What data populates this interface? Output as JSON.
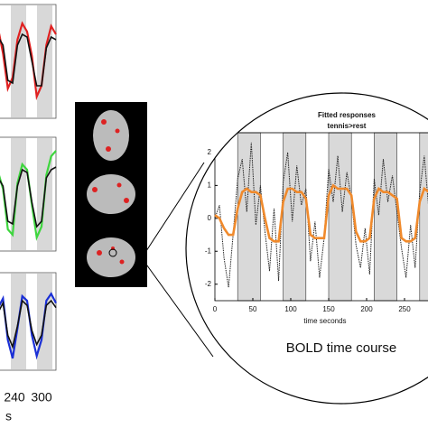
{
  "chart_data": [
    {
      "type": "line",
      "title": "Fitted responses",
      "subtitle": "tennis>rest",
      "xlabel": "time seconds",
      "caption": "BOLD time course",
      "xlim": [
        0,
        290
      ],
      "ylim": [
        -2.5,
        2.6
      ],
      "xticks": [
        0,
        50,
        100,
        150,
        200,
        250
      ],
      "yticks": [
        -2,
        -1,
        0,
        1,
        2
      ],
      "blocks": [
        [
          30,
          60
        ],
        [
          90,
          120
        ],
        [
          150,
          180
        ],
        [
          210,
          240
        ],
        [
          270,
          300
        ]
      ],
      "x": [
        0,
        6,
        12,
        18,
        24,
        30,
        36,
        42,
        48,
        54,
        60,
        66,
        72,
        78,
        84,
        90,
        96,
        102,
        108,
        114,
        120,
        126,
        132,
        138,
        144,
        150,
        156,
        162,
        168,
        174,
        180,
        186,
        192,
        198,
        204,
        210,
        216,
        222,
        228,
        234,
        240,
        246,
        252,
        258,
        264,
        270,
        276,
        282,
        288
      ],
      "series": [
        {
          "color": "#222222",
          "values": [
            0.0,
            0.4,
            -1.2,
            -2.1,
            -0.5,
            1.2,
            1.8,
            0.2,
            2.3,
            -0.2,
            1.0,
            -0.4,
            -1.6,
            0.3,
            -1.9,
            1.1,
            2.0,
            -0.1,
            1.6,
            0.4,
            0.9,
            -1.3,
            -0.1,
            -1.8,
            -0.6,
            1.5,
            0.5,
            1.9,
            0.2,
            1.4,
            0.6,
            -0.8,
            -1.5,
            -0.3,
            -1.7,
            1.2,
            0.1,
            1.8,
            0.5,
            1.3,
            0.2,
            -0.9,
            -1.8,
            -0.2,
            -1.5,
            0.8,
            1.9,
            0.3,
            1.6
          ]
        },
        {
          "color": "#f08a2c",
          "values": [
            0.1,
            0.0,
            -0.3,
            -0.5,
            -0.5,
            0.3,
            0.8,
            0.9,
            0.8,
            0.8,
            0.7,
            0.0,
            -0.6,
            -0.7,
            -0.7,
            0.5,
            0.9,
            0.9,
            0.8,
            0.8,
            0.6,
            -0.5,
            -0.6,
            -0.6,
            -0.6,
            0.7,
            1.0,
            0.9,
            0.9,
            0.9,
            0.7,
            -0.4,
            -0.7,
            -0.7,
            -0.6,
            0.6,
            0.9,
            0.8,
            0.8,
            0.7,
            0.6,
            -0.6,
            -0.7,
            -0.7,
            -0.6,
            0.5,
            0.9,
            0.8,
            0.8
          ]
        }
      ]
    },
    {
      "type": "line",
      "ylim": [
        -2,
        2
      ],
      "series": [
        {
          "color": "#e02020",
          "values": [
            1.2,
            0.3,
            -1.0,
            -0.6,
            0.8,
            1.4,
            1.1,
            0.2,
            -1.3,
            -0.9,
            0.6,
            1.3,
            1.0
          ]
        },
        {
          "color": "#111111",
          "values": [
            0.9,
            0.6,
            -0.7,
            -0.8,
            0.6,
            1.0,
            0.9,
            0.0,
            -0.9,
            -0.9,
            0.5,
            0.9,
            0.8
          ]
        }
      ]
    },
    {
      "type": "line",
      "ylim": [
        -2,
        2
      ],
      "series": [
        {
          "color": "#3ed63e",
          "values": [
            0.8,
            0.2,
            -1.3,
            -1.5,
            0.4,
            1.1,
            0.9,
            -0.4,
            -1.6,
            -1.2,
            0.7,
            1.4,
            1.6
          ]
        },
        {
          "color": "#111111",
          "values": [
            0.6,
            0.3,
            -1.0,
            -1.1,
            0.3,
            0.9,
            0.8,
            -0.3,
            -1.2,
            -1.0,
            0.6,
            0.9,
            1.0
          ]
        }
      ]
    },
    {
      "type": "line",
      "ylim": [
        -2,
        2
      ],
      "xlabel": "s",
      "xticks": [
        240,
        300
      ],
      "series": [
        {
          "color": "#1a2fd6",
          "values": [
            0.6,
            1.0,
            -0.8,
            -1.6,
            -0.3,
            1.1,
            0.9,
            -0.6,
            -1.5,
            -0.8,
            0.9,
            1.2,
            0.8
          ]
        },
        {
          "color": "#111111",
          "values": [
            0.4,
            0.8,
            -0.6,
            -1.1,
            -0.2,
            0.9,
            0.7,
            -0.4,
            -1.0,
            -0.6,
            0.7,
            0.9,
            0.6
          ]
        }
      ]
    }
  ]
}
